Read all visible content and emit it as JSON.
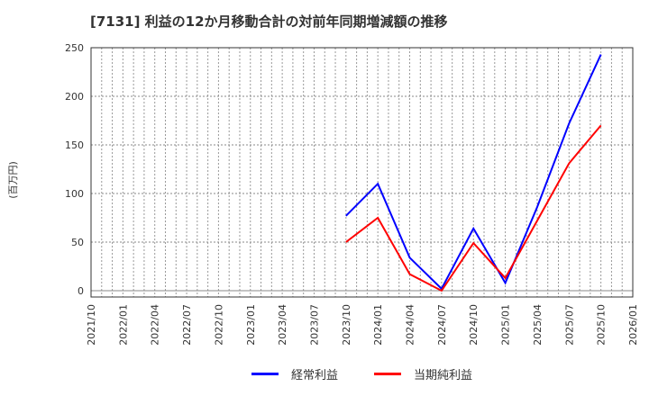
{
  "chart_data": {
    "type": "line",
    "title": "[7131]  利益の12か月移動合計の対前年同期増減額の推移",
    "ylabel": "(百万円)",
    "xlabel": "",
    "ylim": [
      0,
      250
    ],
    "yticks": [
      0,
      50,
      100,
      150,
      200,
      250
    ],
    "grid": true,
    "legend_position": "bottom",
    "x_tick_labels": [
      "2021/10",
      "2022/01",
      "2022/04",
      "2022/07",
      "2022/10",
      "2023/01",
      "2023/04",
      "2023/07",
      "2023/10",
      "2024/01",
      "2024/04",
      "2024/07",
      "2024/10",
      "2025/01",
      "2025/04",
      "2025/07",
      "2025/10",
      "2026/01"
    ],
    "x": [
      "2023/10",
      "2024/01",
      "2024/04",
      "2024/07",
      "2024/10",
      "2025/01",
      "2025/04",
      "2025/07",
      "2025/10"
    ],
    "series": [
      {
        "name": "経常利益",
        "color": "#0000ff",
        "values": [
          77,
          110,
          34,
          2,
          64,
          8,
          86,
          172,
          243
        ]
      },
      {
        "name": "当期純利益",
        "color": "#ff0000",
        "values": [
          50,
          75,
          17,
          0,
          49,
          13,
          72,
          131,
          170
        ]
      }
    ]
  },
  "legend": {
    "items": [
      {
        "label": "経常利益",
        "color": "#0000ff"
      },
      {
        "label": "当期純利益",
        "color": "#ff0000"
      }
    ]
  }
}
